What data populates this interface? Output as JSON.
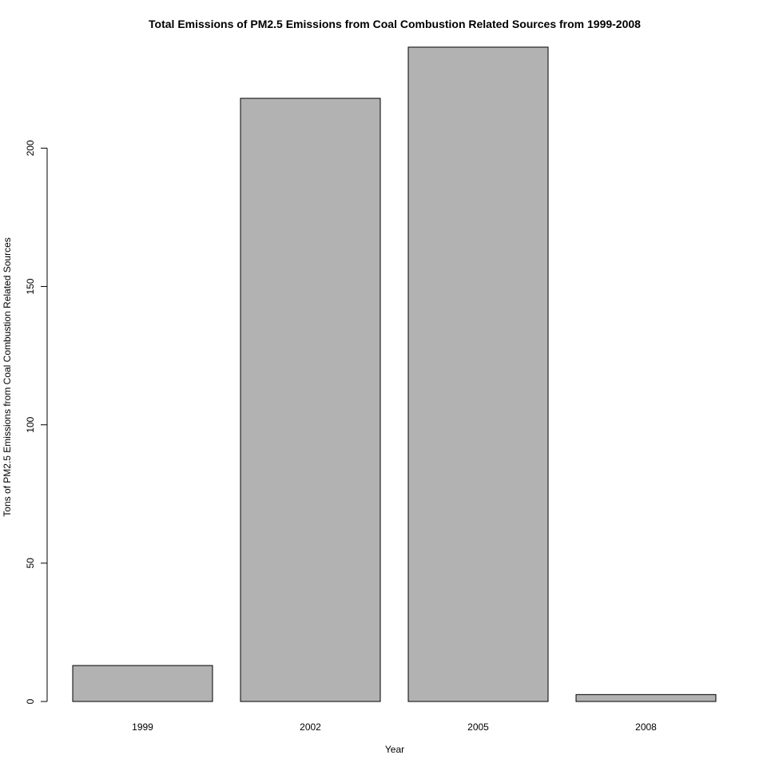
{
  "chart_data": {
    "type": "bar",
    "title": "Total Emissions of PM2.5 Emissions from Coal Combustion Related Sources from 1999-2008",
    "xlabel": "Year",
    "ylabel": "Tons of PM2.5 Emissions from Coal Combustion Related Sources",
    "categories": [
      "1999",
      "2002",
      "2005",
      "2008"
    ],
    "values": [
      13,
      218,
      236.5,
      2.5
    ],
    "ylim": [
      0,
      236.5
    ],
    "yticks": [
      0,
      50,
      100,
      150,
      200
    ],
    "grid": false,
    "legend": "none",
    "colors": {
      "bar_fill": "#b2b2b2",
      "bar_stroke": "#000000",
      "axis": "#000000",
      "background": "#ffffff"
    }
  }
}
